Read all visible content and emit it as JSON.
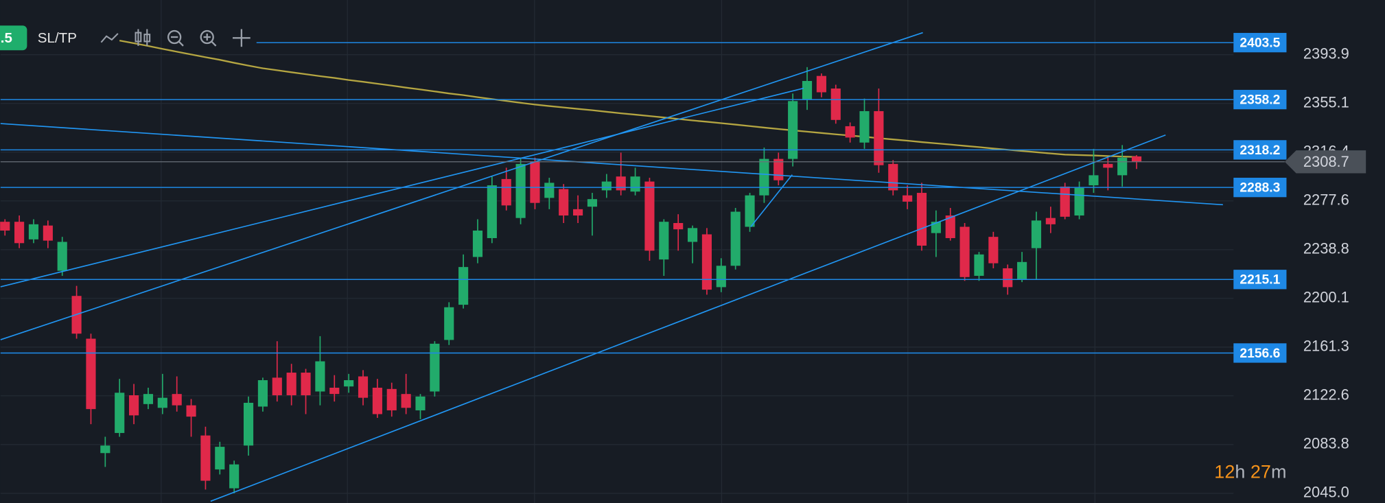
{
  "chart_data": {
    "type": "candlestick",
    "toolbar": {
      "lot": ".5",
      "sltp": "SL/TP"
    },
    "timer": {
      "hours": 12,
      "hours_unit": "h",
      "minutes": 27,
      "minutes_unit": "m"
    },
    "ylim": [
      2037.3,
      2437.4
    ],
    "yticks": [
      2393.9,
      2355.1,
      2316.4,
      2277.6,
      2238.8,
      2200.1,
      2161.3,
      2122.6,
      2083.8,
      {
        "value": 2045,
        "label": "2045.0"
      }
    ],
    "grid": true,
    "up_color": "#22ab6b",
    "down_color": "#e0294a",
    "level_color": "#1e88e5",
    "levels": [
      2403.5,
      2358.2,
      2318.2,
      2288.3,
      2215.1,
      2156.6
    ],
    "current_price": 2308.7,
    "candles": [
      [
        2261,
        2263,
        2250,
        2254
      ],
      [
        2261,
        2266,
        2240,
        2244
      ],
      [
        2247,
        2263,
        2244,
        2259
      ],
      [
        2258,
        2262,
        2240,
        2246
      ],
      [
        2222,
        2249,
        2218,
        2245
      ],
      [
        2202,
        2210,
        2168,
        2172
      ],
      [
        2168,
        2172,
        2100,
        2112
      ],
      [
        2077,
        2090,
        2066,
        2083
      ],
      [
        2093,
        2136,
        2090,
        2125
      ],
      [
        2123,
        2132,
        2100,
        2107
      ],
      [
        2116,
        2129,
        2112,
        2124
      ],
      [
        2113,
        2140,
        2108,
        2121
      ],
      [
        2124,
        2138,
        2110,
        2115
      ],
      [
        2115,
        2120,
        2090,
        2106
      ],
      [
        2091,
        2098,
        2048,
        2055
      ],
      [
        2064,
        2086,
        2060,
        2082
      ],
      [
        2049,
        2071,
        2045,
        2068
      ],
      [
        2083,
        2122,
        2075,
        2117
      ],
      [
        2114,
        2137,
        2110,
        2135
      ],
      [
        2137,
        2166,
        2118,
        2123
      ],
      [
        2141,
        2148,
        2115,
        2123
      ],
      [
        2141,
        2144,
        2108,
        2123
      ],
      [
        2126,
        2170,
        2115,
        2150
      ],
      [
        2129,
        2139,
        2118,
        2124
      ],
      [
        2130,
        2140,
        2125,
        2135
      ],
      [
        2138,
        2143,
        2115,
        2121
      ],
      [
        2129,
        2136,
        2105,
        2108
      ],
      [
        2128,
        2133,
        2106,
        2111
      ],
      [
        2124,
        2140,
        2108,
        2113
      ],
      [
        2111,
        2124,
        2104,
        2122
      ],
      [
        2126,
        2166,
        2122,
        2164
      ],
      [
        2167,
        2197,
        2163,
        2193
      ],
      [
        2195,
        2235,
        2192,
        2225
      ],
      [
        2233,
        2263,
        2228,
        2254
      ],
      [
        2248,
        2297,
        2244,
        2290
      ],
      [
        2295,
        2304,
        2270,
        2274
      ],
      [
        2264,
        2311,
        2259,
        2307
      ],
      [
        2309,
        2312,
        2271,
        2276
      ],
      [
        2280,
        2296,
        2271,
        2292
      ],
      [
        2287,
        2291,
        2260,
        2266
      ],
      [
        2271,
        2282,
        2260,
        2266
      ],
      [
        2273,
        2284,
        2250,
        2279
      ],
      [
        2286,
        2299,
        2280,
        2293
      ],
      [
        2297,
        2316,
        2282,
        2286
      ],
      [
        2285,
        2304,
        2282,
        2297
      ],
      [
        2293,
        2296,
        2230,
        2238
      ],
      [
        2231,
        2263,
        2218,
        2261
      ],
      [
        2260,
        2267,
        2238,
        2255
      ],
      [
        2245,
        2258,
        2228,
        2256
      ],
      [
        2251,
        2256,
        2203,
        2207
      ],
      [
        2209,
        2232,
        2205,
        2226
      ],
      [
        2226,
        2272,
        2223,
        2269
      ],
      [
        2257,
        2284,
        2253,
        2282
      ],
      [
        2282,
        2320,
        2276,
        2311
      ],
      [
        2311,
        2316,
        2290,
        2294
      ],
      [
        2311,
        2363,
        2305,
        2357
      ],
      [
        2358,
        2384,
        2350,
        2373
      ],
      [
        2377,
        2379,
        2360,
        2364
      ],
      [
        2367,
        2370,
        2339,
        2342
      ],
      [
        2337,
        2340,
        2324,
        2328
      ],
      [
        2324,
        2359,
        2319,
        2349
      ],
      [
        2349,
        2367,
        2300,
        2306
      ],
      [
        2307,
        2310,
        2282,
        2286
      ],
      [
        2282,
        2290,
        2271,
        2277
      ],
      [
        2284,
        2292,
        2238,
        2242
      ],
      [
        2252,
        2270,
        2233,
        2261
      ],
      [
        2266,
        2272,
        2246,
        2248
      ],
      [
        2257,
        2260,
        2214,
        2217
      ],
      [
        2218,
        2237,
        2214,
        2235
      ],
      [
        2249,
        2253,
        2224,
        2228
      ],
      [
        2224,
        2227,
        2203,
        2209
      ],
      [
        2215,
        2237,
        2213,
        2229
      ],
      [
        2240,
        2269,
        2215,
        2262
      ],
      [
        2264,
        2273,
        2252,
        2259
      ],
      [
        2289,
        2292,
        2263,
        2265
      ],
      [
        2266,
        2293,
        2263,
        2288
      ],
      [
        2290,
        2319,
        2284,
        2298
      ],
      [
        2307,
        2312,
        2286,
        2304
      ],
      [
        2298,
        2322,
        2289,
        2312
      ],
      [
        2313,
        2314,
        2303,
        2308.7
      ]
    ],
    "ma": {
      "color": "#b5a642",
      "values": [
        null,
        null,
        null,
        null,
        null,
        null,
        null,
        null,
        2405.1,
        2403.0,
        2400.8,
        2398.5,
        2396.3,
        2394.1,
        2391.9,
        2389.8,
        2387.4,
        2385.2,
        2383.1,
        2381.5,
        2379.9,
        2378.4,
        2376.8,
        2375.4,
        2373.7,
        2372.3,
        2370.8,
        2369.3,
        2367.7,
        2366.2,
        2364.7,
        2363.1,
        2361.7,
        2360.1,
        2358.6,
        2357.1,
        2355.6,
        2354.2,
        2353.0,
        2351.9,
        2350.8,
        2349.7,
        2348.5,
        2347.3,
        2346.2,
        2345.1,
        2344.0,
        2342.8,
        2341.6,
        2340.5,
        2339.4,
        2338.3,
        2337.1,
        2335.9,
        2334.8,
        2333.7,
        2332.7,
        2331.6,
        2330.6,
        2329.6,
        2328.6,
        2327.5,
        2326.5,
        2325.5,
        2324.4,
        2323.4,
        2322.4,
        2321.4,
        2320.4,
        2319.3,
        2318.3,
        2317.3,
        2316.3,
        2315.3,
        2314.4,
        2314.1,
        2313.7,
        2313.3,
        2312.9,
        2312.5
      ]
    }
  }
}
